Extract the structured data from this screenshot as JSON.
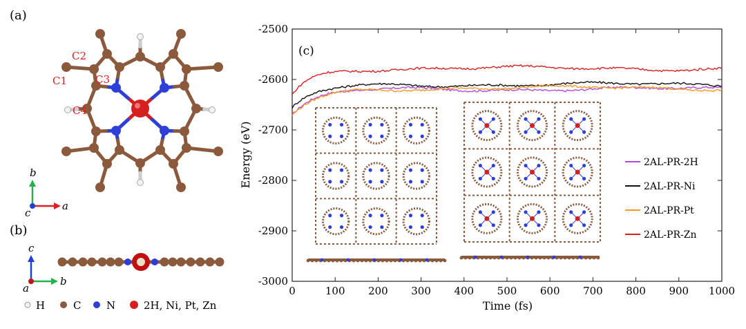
{
  "panels": {
    "a": "(a)",
    "b": "(b)",
    "c": "(c)"
  },
  "structure_labels": {
    "C1": "C1",
    "C2": "C2",
    "C3": "C3",
    "C4": "C4"
  },
  "axes_labels": {
    "a_top": "a",
    "b_top": "b",
    "c_top": "c",
    "c_side": "c",
    "a_side": "a",
    "b_side": "b"
  },
  "atom_legend": [
    {
      "label": "H",
      "color": "#f2f2f2"
    },
    {
      "label": "C",
      "color": "#8b5a3c"
    },
    {
      "label": "N",
      "color": "#2d3fd6"
    },
    {
      "label": "2H, Ni, Pt, Zn",
      "color": "#d62020"
    }
  ],
  "colors": {
    "carbon": "#8b5a3c",
    "nitrogen": "#2d3fd6",
    "metal": "#d62020",
    "hydrogen": "#f2f2f2",
    "axis_red": "#e02020",
    "axis_green": "#22b14c",
    "axis_blue": "#1f3fd6"
  },
  "chart_data": {
    "type": "line",
    "xlabel": "Time (fs)",
    "ylabel": "Energy (eV)",
    "xlim": [
      0,
      1000
    ],
    "ylim": [
      -3000,
      -2500
    ],
    "xticks": [
      0,
      100,
      200,
      300,
      400,
      500,
      600,
      700,
      800,
      900,
      1000
    ],
    "yticks": [
      -2500,
      -2600,
      -2700,
      -2800,
      -2900,
      -3000
    ],
    "legend_position": "right",
    "series": [
      {
        "name": "2AL-PR-2H",
        "color": "#b347e6",
        "start": -2670,
        "plateau": -2619,
        "tau": 60
      },
      {
        "name": "2AL-PR-Ni",
        "color": "#111111",
        "start": -2660,
        "plateau": -2610,
        "tau": 55
      },
      {
        "name": "2AL-PR-Pt",
        "color": "#f39a1e",
        "start": -2672,
        "plateau": -2617,
        "tau": 60
      },
      {
        "name": "2AL-PR-Zn",
        "color": "#d62020",
        "start": -2630,
        "plateau": -2578,
        "tau": 45
      }
    ]
  }
}
